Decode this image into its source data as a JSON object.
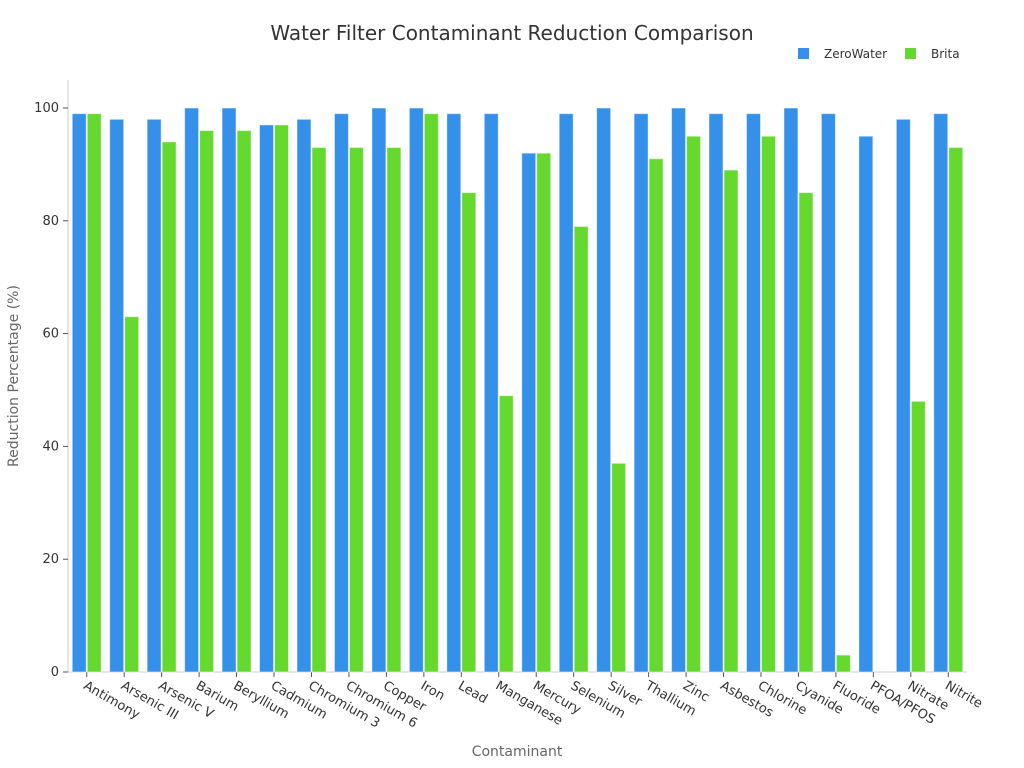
{
  "chart_data": {
    "type": "bar",
    "title": "Water Filter Contaminant Reduction Comparison",
    "xlabel": "Contaminant",
    "ylabel": "Reduction Percentage (%)",
    "ylim": [
      0,
      100
    ],
    "yticks": [
      0,
      20,
      40,
      60,
      80,
      100
    ],
    "grid": false,
    "legend_position": "top-right",
    "categories": [
      "Antimony",
      "Arsenic III",
      "Arsenic V",
      "Barium",
      "Beryllium",
      "Cadmium",
      "Chromium 3",
      "Chromium 6",
      "Copper",
      "Iron",
      "Lead",
      "Manganese",
      "Mercury",
      "Selenium",
      "Silver",
      "Thallium",
      "Zinc",
      "Asbestos",
      "Chlorine",
      "Cyanide",
      "Fluoride",
      "PFOA/PFOS",
      "Nitrate",
      "Nitrite"
    ],
    "series": [
      {
        "name": "ZeroWater",
        "color": "#3590ea",
        "values": [
          99,
          98,
          98,
          100,
          100,
          97,
          98,
          99,
          100,
          100,
          99,
          99,
          92,
          99,
          100,
          99,
          100,
          99,
          99,
          100,
          99,
          95,
          98,
          99
        ]
      },
      {
        "name": "Brita",
        "color": "#66d92e",
        "values": [
          99,
          63,
          94,
          96,
          96,
          97,
          93,
          93,
          93,
          99,
          85,
          49,
          92,
          79,
          37,
          91,
          95,
          89,
          95,
          85,
          3,
          0,
          48,
          93
        ]
      }
    ]
  }
}
